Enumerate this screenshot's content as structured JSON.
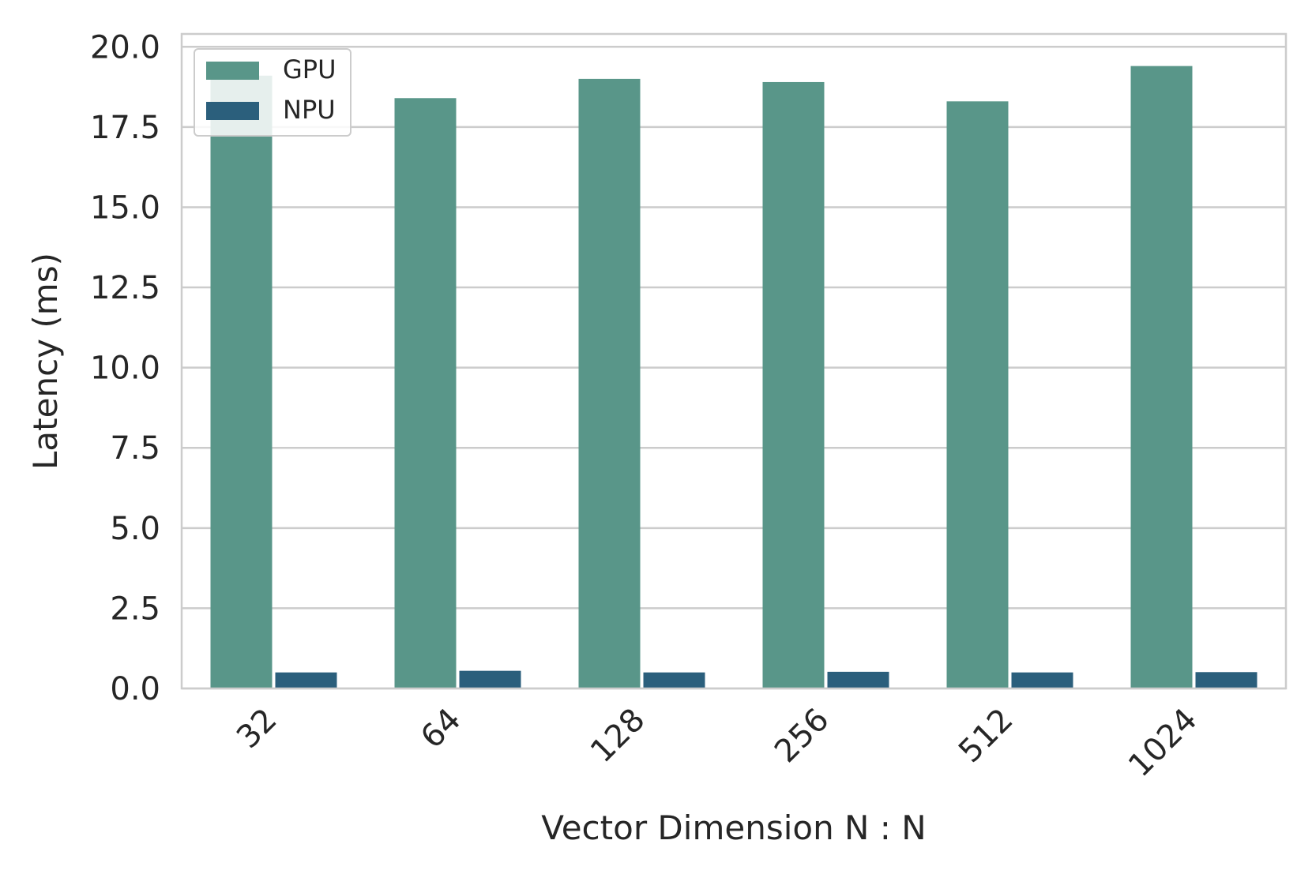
{
  "chart_data": {
    "type": "bar",
    "title": "",
    "xlabel": "Vector Dimension N : N",
    "ylabel": "Latency (ms)",
    "categories": [
      "32",
      "64",
      "128",
      "256",
      "512",
      "1024"
    ],
    "series": [
      {
        "name": "GPU",
        "color": "#599689",
        "values": [
          19.1,
          18.4,
          19.0,
          18.9,
          18.3,
          19.4
        ]
      },
      {
        "name": "NPU",
        "color": "#2b5f7c",
        "values": [
          0.5,
          0.55,
          0.5,
          0.52,
          0.5,
          0.51
        ]
      }
    ],
    "ylim": [
      0,
      20.4
    ],
    "yticks": [
      "0.0",
      "2.5",
      "5.0",
      "7.5",
      "10.0",
      "12.5",
      "15.0",
      "17.5",
      "20.0"
    ],
    "grid": true,
    "legend_position": "top-left",
    "grid_color": "#cccccc",
    "frame_color": "#cccccc"
  }
}
